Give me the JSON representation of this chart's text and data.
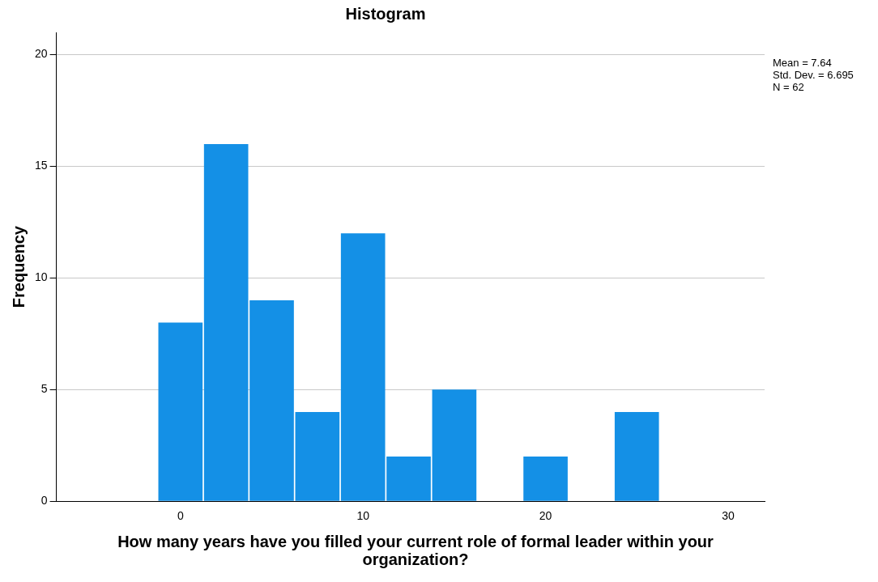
{
  "chart_data": {
    "type": "histogram",
    "title": "Histogram",
    "xlabel": "How many years have you filled your current role of formal leader within your organization?",
    "ylabel": "Frequency",
    "bins": [
      -1.25,
      1.25,
      3.75,
      6.25,
      8.75,
      11.25,
      13.75,
      16.25,
      18.75,
      21.25,
      23.75,
      26.25
    ],
    "values": [
      8,
      16,
      9,
      4,
      12,
      2,
      5,
      0,
      2,
      0,
      4
    ],
    "color": "#1490e6",
    "xlim": [
      -6.8,
      32
    ],
    "xticks": [
      0,
      10,
      20,
      30
    ],
    "ylim": [
      0,
      21
    ],
    "yticks": [
      0,
      5,
      10,
      15,
      20
    ],
    "grid": "y",
    "legend": false,
    "annotations": [
      "Mean = 7.64",
      "Std. Dev. = 6.695",
      "N = 62"
    ]
  }
}
